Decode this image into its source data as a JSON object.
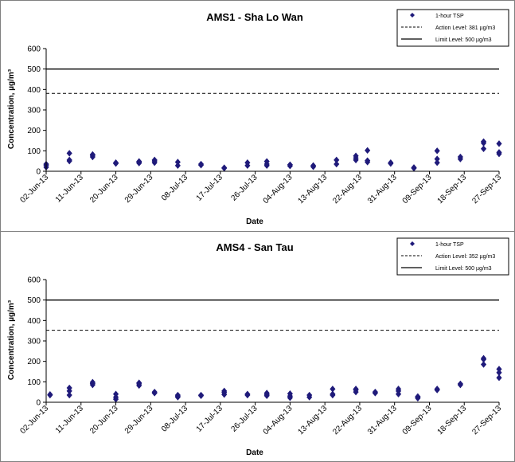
{
  "chart_data": [
    {
      "type": "scatter",
      "title": "AMS1 - Sha Lo Wan",
      "xlabel": "Date",
      "ylabel": "Concentration, µg/m³",
      "ylim": [
        0,
        600
      ],
      "yticks": [
        0,
        100,
        200,
        300,
        400,
        500,
        600
      ],
      "xlim": [
        "2013-06-02",
        "2013-09-27"
      ],
      "xticks": [
        "02-Jun-13",
        "11-Jun-13",
        "20-Jun-13",
        "29-Jun-13",
        "08-Jul-13",
        "17-Jul-13",
        "26-Jul-13",
        "04-Aug-13",
        "13-Aug-13",
        "22-Aug-13",
        "31-Aug-13",
        "09-Sep-13",
        "18-Sep-13",
        "27-Sep-13"
      ],
      "grid": false,
      "legend_position": "top-right",
      "legend": [
        "1-hour TSP",
        "Action Level: 381 µg/m3",
        "Limit Level: 500 µg/m3"
      ],
      "action_level": 381,
      "limit_level": 500,
      "series": [
        {
          "name": "1-hour TSP",
          "color": "#1f1a7a",
          "points": [
            [
              "2013-06-02",
              20
            ],
            [
              "2013-06-02",
              30
            ],
            [
              "2013-06-02",
              35
            ],
            [
              "2013-06-08",
              50
            ],
            [
              "2013-06-08",
              55
            ],
            [
              "2013-06-08",
              88
            ],
            [
              "2013-06-14",
              70
            ],
            [
              "2013-06-14",
              78
            ],
            [
              "2013-06-14",
              82
            ],
            [
              "2013-06-20",
              38
            ],
            [
              "2013-06-20",
              42
            ],
            [
              "2013-06-26",
              40
            ],
            [
              "2013-06-26",
              45
            ],
            [
              "2013-06-26",
              48
            ],
            [
              "2013-06-30",
              42
            ],
            [
              "2013-06-30",
              50
            ],
            [
              "2013-06-30",
              55
            ],
            [
              "2013-07-06",
              28
            ],
            [
              "2013-07-06",
              45
            ],
            [
              "2013-07-12",
              30
            ],
            [
              "2013-07-12",
              35
            ],
            [
              "2013-07-18",
              15
            ],
            [
              "2013-07-18",
              17
            ],
            [
              "2013-07-24",
              28
            ],
            [
              "2013-07-24",
              42
            ],
            [
              "2013-07-29",
              28
            ],
            [
              "2013-07-29",
              35
            ],
            [
              "2013-07-29",
              48
            ],
            [
              "2013-08-04",
              26
            ],
            [
              "2013-08-04",
              32
            ],
            [
              "2013-08-10",
              22
            ],
            [
              "2013-08-10",
              28
            ],
            [
              "2013-08-16",
              35
            ],
            [
              "2013-08-16",
              55
            ],
            [
              "2013-08-21",
              55
            ],
            [
              "2013-08-21",
              65
            ],
            [
              "2013-08-21",
              75
            ],
            [
              "2013-08-24",
              45
            ],
            [
              "2013-08-24",
              52
            ],
            [
              "2013-08-24",
              102
            ],
            [
              "2013-08-30",
              38
            ],
            [
              "2013-08-30",
              42
            ],
            [
              "2013-09-05",
              15
            ],
            [
              "2013-09-05",
              18
            ],
            [
              "2013-09-11",
              42
            ],
            [
              "2013-09-11",
              60
            ],
            [
              "2013-09-11",
              100
            ],
            [
              "2013-09-17",
              60
            ],
            [
              "2013-09-17",
              70
            ],
            [
              "2013-09-23",
              110
            ],
            [
              "2013-09-23",
              138
            ],
            [
              "2013-09-23",
              145
            ],
            [
              "2013-09-27",
              85
            ],
            [
              "2013-09-27",
              92
            ],
            [
              "2013-09-27",
              135
            ]
          ]
        }
      ]
    },
    {
      "type": "scatter",
      "title": "AMS4 - San Tau",
      "xlabel": "Date",
      "ylabel": "Concentration, µg/m³",
      "ylim": [
        0,
        600
      ],
      "yticks": [
        0,
        100,
        200,
        300,
        400,
        500,
        600
      ],
      "xlim": [
        "2013-06-02",
        "2013-09-27"
      ],
      "xticks": [
        "02-Jun-13",
        "11-Jun-13",
        "20-Jun-13",
        "29-Jun-13",
        "08-Jul-13",
        "17-Jul-13",
        "26-Jul-13",
        "04-Aug-13",
        "13-Aug-13",
        "22-Aug-13",
        "31-Aug-13",
        "09-Sep-13",
        "18-Sep-13",
        "27-Sep-13"
      ],
      "grid": false,
      "legend_position": "top-right",
      "legend": [
        "1-hour TSP",
        "Action Level: 352 µg/m3",
        "Limit Level: 500 µg/m3"
      ],
      "action_level": 352,
      "limit_level": 500,
      "series": [
        {
          "name": "1-hour TSP",
          "color": "#1f1a7a",
          "points": [
            [
              "2013-06-03",
              35
            ],
            [
              "2013-06-03",
              38
            ],
            [
              "2013-06-08",
              35
            ],
            [
              "2013-06-08",
              55
            ],
            [
              "2013-06-08",
              70
            ],
            [
              "2013-06-14",
              85
            ],
            [
              "2013-06-14",
              92
            ],
            [
              "2013-06-14",
              98
            ],
            [
              "2013-06-20",
              15
            ],
            [
              "2013-06-20",
              25
            ],
            [
              "2013-06-20",
              40
            ],
            [
              "2013-06-26",
              82
            ],
            [
              "2013-06-26",
              90
            ],
            [
              "2013-06-26",
              95
            ],
            [
              "2013-06-30",
              45
            ],
            [
              "2013-06-30",
              50
            ],
            [
              "2013-07-06",
              25
            ],
            [
              "2013-07-06",
              30
            ],
            [
              "2013-07-06",
              35
            ],
            [
              "2013-07-12",
              32
            ],
            [
              "2013-07-12",
              35
            ],
            [
              "2013-07-18",
              38
            ],
            [
              "2013-07-18",
              48
            ],
            [
              "2013-07-18",
              55
            ],
            [
              "2013-07-24",
              35
            ],
            [
              "2013-07-24",
              40
            ],
            [
              "2013-07-29",
              32
            ],
            [
              "2013-07-29",
              38
            ],
            [
              "2013-07-29",
              45
            ],
            [
              "2013-08-04",
              22
            ],
            [
              "2013-08-04",
              30
            ],
            [
              "2013-08-04",
              42
            ],
            [
              "2013-08-09",
              25
            ],
            [
              "2013-08-09",
              35
            ],
            [
              "2013-08-15",
              35
            ],
            [
              "2013-08-15",
              40
            ],
            [
              "2013-08-15",
              65
            ],
            [
              "2013-08-21",
              50
            ],
            [
              "2013-08-21",
              60
            ],
            [
              "2013-08-21",
              65
            ],
            [
              "2013-08-26",
              45
            ],
            [
              "2013-08-26",
              50
            ],
            [
              "2013-09-01",
              40
            ],
            [
              "2013-09-01",
              55
            ],
            [
              "2013-09-01",
              65
            ],
            [
              "2013-09-06",
              20
            ],
            [
              "2013-09-06",
              25
            ],
            [
              "2013-09-06",
              28
            ],
            [
              "2013-09-11",
              60
            ],
            [
              "2013-09-11",
              65
            ],
            [
              "2013-09-17",
              85
            ],
            [
              "2013-09-17",
              90
            ],
            [
              "2013-09-23",
              185
            ],
            [
              "2013-09-23",
              210
            ],
            [
              "2013-09-23",
              215
            ],
            [
              "2013-09-27",
              120
            ],
            [
              "2013-09-27",
              145
            ],
            [
              "2013-09-27",
              162
            ]
          ]
        }
      ]
    }
  ]
}
